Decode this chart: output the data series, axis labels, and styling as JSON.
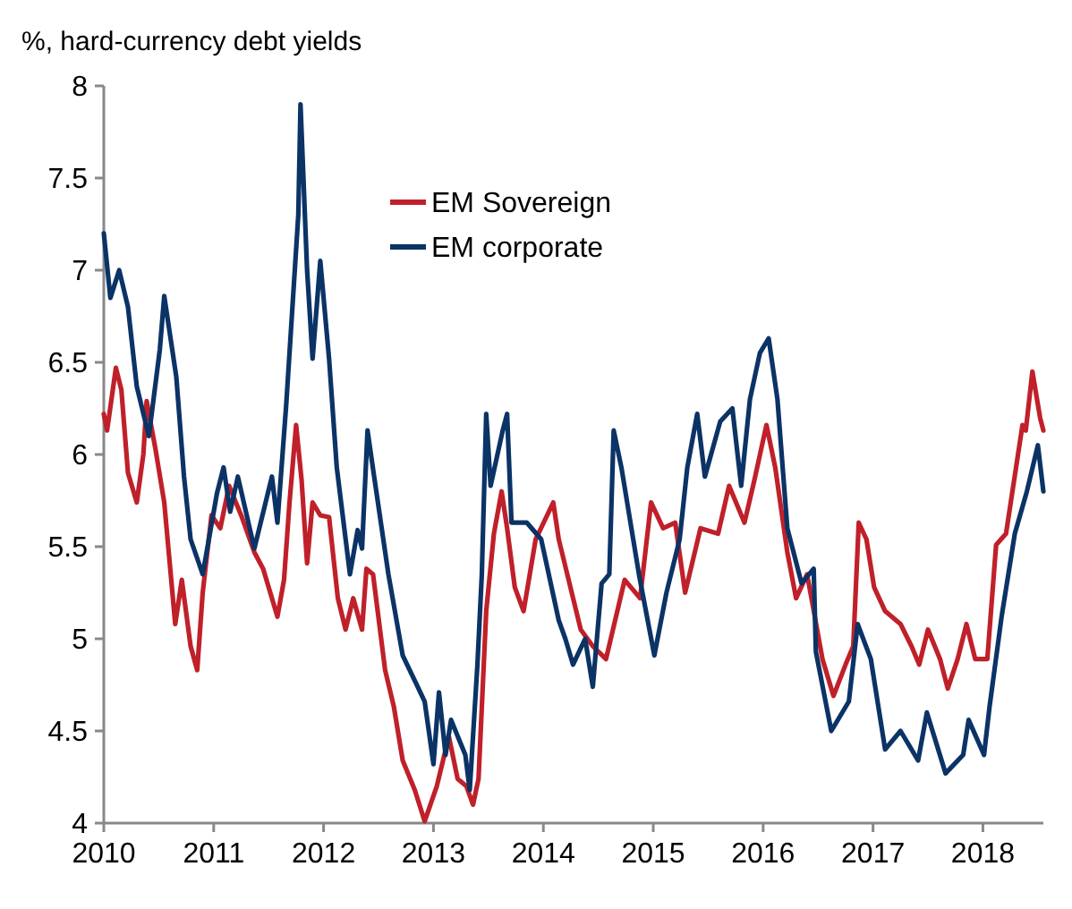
{
  "chart_data": {
    "type": "line",
    "subtitle": "%, hard-currency debt yields",
    "xlim": [
      2010,
      2018.55
    ],
    "xticks": [
      2010,
      2011,
      2012,
      2013,
      2014,
      2015,
      2016,
      2017,
      2018
    ],
    "ylim": [
      4,
      8
    ],
    "yticks": [
      4,
      {
        "value": 4.5,
        "label": "4.5"
      },
      5,
      {
        "value": 5.5,
        "label": "5.5"
      },
      6,
      {
        "value": 6.5,
        "label": "6.5"
      },
      7,
      {
        "value": 7.5,
        "label": "7.5"
      },
      8
    ],
    "grid": false,
    "legend": "top",
    "line_style": "solid",
    "marker": "none",
    "series": [
      {
        "name": "EM Sovereign",
        "color": "#c0202a",
        "x": [
          2010.0,
          2010.03,
          2010.11,
          2010.16,
          2010.22,
          2010.3,
          2010.36,
          2010.39,
          2010.47,
          2010.55,
          2010.65,
          2010.71,
          2010.79,
          2010.85,
          2010.9,
          2010.98,
          2011.06,
          2011.14,
          2011.25,
          2011.37,
          2011.45,
          2011.58,
          2011.64,
          2011.69,
          2011.75,
          2011.8,
          2011.85,
          2011.9,
          2011.97,
          2012.05,
          2012.13,
          2012.2,
          2012.27,
          2012.35,
          2012.39,
          2012.45,
          2012.56,
          2012.64,
          2012.72,
          2012.83,
          2012.92,
          2013.03,
          2013.14,
          2013.22,
          2013.3,
          2013.36,
          2013.41,
          2013.48,
          2013.55,
          2013.62,
          2013.67,
          2013.74,
          2013.82,
          2013.93,
          2014.09,
          2014.14,
          2014.34,
          2014.45,
          2014.57,
          2014.74,
          2014.88,
          2014.98,
          2015.09,
          2015.2,
          2015.29,
          2015.43,
          2015.59,
          2015.69,
          2015.83,
          2015.92,
          2016.03,
          2016.11,
          2016.22,
          2016.3,
          2016.4,
          2016.54,
          2016.64,
          2016.75,
          2016.82,
          2016.87,
          2016.94,
          2017.01,
          2017.11,
          2017.25,
          2017.35,
          2017.42,
          2017.5,
          2017.61,
          2017.68,
          2017.77,
          2017.85,
          2017.93,
          2018.04,
          2018.12,
          2018.21,
          2018.36,
          2018.39,
          2018.45,
          2018.52,
          2018.55
        ],
        "values": [
          6.22,
          6.13,
          6.47,
          6.35,
          5.9,
          5.74,
          6.0,
          6.29,
          6.03,
          5.74,
          5.08,
          5.32,
          4.96,
          4.83,
          5.25,
          5.67,
          5.6,
          5.83,
          5.67,
          5.47,
          5.38,
          5.12,
          5.32,
          5.74,
          6.16,
          5.86,
          5.41,
          5.74,
          5.67,
          5.66,
          5.22,
          5.05,
          5.22,
          5.05,
          5.38,
          5.35,
          4.83,
          4.63,
          4.34,
          4.18,
          4.01,
          4.2,
          4.47,
          4.24,
          4.2,
          4.1,
          4.24,
          5.15,
          5.57,
          5.8,
          5.6,
          5.28,
          5.15,
          5.54,
          5.74,
          5.54,
          5.05,
          4.96,
          4.89,
          5.32,
          5.22,
          5.74,
          5.6,
          5.63,
          5.25,
          5.6,
          5.57,
          5.83,
          5.63,
          5.86,
          6.16,
          5.93,
          5.47,
          5.22,
          5.35,
          4.89,
          4.69,
          4.86,
          4.96,
          5.63,
          5.54,
          5.28,
          5.15,
          5.08,
          4.96,
          4.86,
          5.05,
          4.89,
          4.73,
          4.89,
          5.08,
          4.89,
          4.89,
          5.51,
          5.57,
          6.16,
          6.13,
          6.45,
          6.2,
          6.13
        ]
      },
      {
        "name": "EM corporate",
        "color": "#0b3366",
        "x": [
          2010.0,
          2010.06,
          2010.14,
          2010.22,
          2010.3,
          2010.41,
          2010.51,
          2010.55,
          2010.66,
          2010.73,
          2010.79,
          2010.9,
          2011.03,
          2011.09,
          2011.15,
          2011.22,
          2011.37,
          2011.53,
          2011.58,
          2011.66,
          2011.77,
          2011.79,
          2011.85,
          2011.9,
          2011.97,
          2012.05,
          2012.12,
          2012.24,
          2012.31,
          2012.35,
          2012.4,
          2012.46,
          2012.59,
          2012.72,
          2012.84,
          2012.92,
          2013.0,
          2013.05,
          2013.11,
          2013.16,
          2013.29,
          2013.33,
          2013.4,
          2013.44,
          2013.48,
          2013.52,
          2013.63,
          2013.67,
          2013.71,
          2013.85,
          2013.98,
          2014.14,
          2014.2,
          2014.27,
          2014.38,
          2014.45,
          2014.53,
          2014.6,
          2014.64,
          2014.71,
          2014.87,
          2015.01,
          2015.12,
          2015.24,
          2015.31,
          2015.4,
          2015.47,
          2015.61,
          2015.72,
          2015.8,
          2015.88,
          2015.97,
          2016.05,
          2016.13,
          2016.22,
          2016.35,
          2016.46,
          2016.48,
          2016.62,
          2016.78,
          2016.86,
          2016.98,
          2017.11,
          2017.25,
          2017.41,
          2017.49,
          2017.66,
          2017.82,
          2017.87,
          2018.01,
          2018.06,
          2018.17,
          2018.29,
          2018.4,
          2018.5,
          2018.55
        ],
        "values": [
          7.2,
          6.85,
          7.0,
          6.8,
          6.37,
          6.1,
          6.57,
          6.86,
          6.42,
          5.88,
          5.54,
          5.35,
          5.79,
          5.93,
          5.69,
          5.88,
          5.49,
          5.88,
          5.63,
          6.27,
          7.3,
          7.9,
          7.0,
          6.52,
          7.05,
          6.52,
          5.93,
          5.35,
          5.59,
          5.49,
          6.13,
          5.88,
          5.35,
          4.91,
          4.76,
          4.66,
          4.32,
          4.71,
          4.37,
          4.56,
          4.37,
          4.18,
          4.86,
          5.35,
          6.22,
          5.83,
          6.13,
          6.22,
          5.63,
          5.63,
          5.54,
          5.1,
          5.0,
          4.86,
          5.0,
          4.74,
          5.3,
          5.35,
          6.13,
          5.93,
          5.35,
          4.91,
          5.25,
          5.54,
          5.93,
          6.22,
          5.88,
          6.18,
          6.25,
          5.83,
          6.3,
          6.55,
          6.63,
          6.3,
          5.6,
          5.3,
          5.38,
          4.93,
          4.5,
          4.66,
          5.08,
          4.89,
          4.4,
          4.5,
          4.34,
          4.6,
          4.27,
          4.37,
          4.56,
          4.37,
          4.63,
          5.12,
          5.57,
          5.8,
          6.05,
          5.8
        ]
      }
    ]
  }
}
